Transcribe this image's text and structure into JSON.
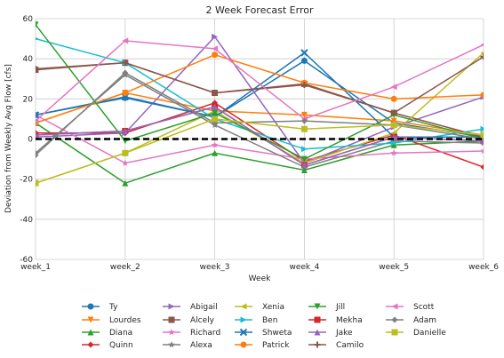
{
  "chart_data": {
    "type": "line",
    "title": "2 Week Forecast Error",
    "xlabel": "Week",
    "ylabel": "Deviation from Weekly Avg Flow [cfs]",
    "categories": [
      "week_1",
      "week_2",
      "week_3",
      "week_4",
      "week_5",
      "week_6"
    ],
    "ylim": [
      -60,
      60
    ],
    "yticks": [
      -60,
      -40,
      -20,
      0,
      20,
      40,
      60
    ],
    "grid": true,
    "legend_position": "bottom",
    "reference_line": {
      "y": 0,
      "style": "dashed",
      "color": "#000000"
    },
    "series": [
      {
        "name": "Ty",
        "color": "#1f77b4",
        "marker": "circle",
        "values": [
          12,
          20.5,
          11,
          39,
          8,
          1
        ]
      },
      {
        "name": "Lourdes",
        "color": "#ff7f0e",
        "marker": "triangle-down",
        "values": [
          8,
          23,
          14,
          12,
          9,
          2
        ]
      },
      {
        "name": "Diana",
        "color": "#2ca02c",
        "marker": "triangle-up",
        "values": [
          8,
          -22,
          -7,
          -15.5,
          -3,
          -1
        ]
      },
      {
        "name": "Quinn",
        "color": "#d62728",
        "marker": "diamond",
        "values": [
          3,
          3,
          18,
          -11,
          2,
          -14
        ]
      },
      {
        "name": "Abigail",
        "color": "#9467bd",
        "marker": "triangle-right",
        "values": [
          1,
          3,
          51,
          -12,
          6,
          21
        ]
      },
      {
        "name": "Alcely",
        "color": "#8c564b",
        "marker": "square",
        "values": [
          34.5,
          38,
          23,
          27.5,
          13,
          1
        ]
      },
      {
        "name": "Richard",
        "color": "#e377c2",
        "marker": "star",
        "values": [
          12,
          -12,
          -3,
          -10,
          -7,
          -6
        ]
      },
      {
        "name": "Alexa",
        "color": "#7f7f7f",
        "marker": "star",
        "values": [
          -7,
          32,
          7,
          -14,
          -1,
          -2
        ]
      },
      {
        "name": "Xenia",
        "color": "#bcbd22",
        "marker": "triangle-left",
        "values": [
          -22,
          -7,
          14,
          -12,
          3,
          43
        ]
      },
      {
        "name": "Ben",
        "color": "#17becf",
        "marker": "triangle-right",
        "values": [
          50,
          38,
          10,
          -5,
          -2,
          5
        ]
      },
      {
        "name": "Shweta",
        "color": "#1f77b4",
        "marker": "x",
        "values": [
          12,
          21,
          11,
          43,
          1,
          1
        ]
      },
      {
        "name": "Patrick",
        "color": "#ff7f0e",
        "marker": "circle",
        "values": [
          8,
          23,
          42,
          28,
          20,
          22
        ]
      },
      {
        "name": "Jill",
        "color": "#2ca02c",
        "marker": "triangle-down",
        "values": [
          57,
          -1,
          13,
          -10,
          12,
          0
        ]
      },
      {
        "name": "Mekha",
        "color": "#d62728",
        "marker": "square",
        "values": [
          2,
          4,
          16,
          -13,
          1,
          -1
        ]
      },
      {
        "name": "Jake",
        "color": "#9467bd",
        "marker": "triangle-up",
        "values": [
          2,
          4,
          16,
          -13,
          1,
          -1
        ]
      },
      {
        "name": "Camilo",
        "color": "#8c564b",
        "marker": "plus",
        "values": [
          35,
          38,
          23,
          27,
          13,
          41
        ]
      },
      {
        "name": "Scott",
        "color": "#e377c2",
        "marker": "triangle-left",
        "values": [
          9,
          49,
          45,
          10,
          26,
          47
        ]
      },
      {
        "name": "Adam",
        "color": "#7f7f7f",
        "marker": "diamond",
        "values": [
          -8,
          33,
          8,
          9,
          7,
          0
        ]
      },
      {
        "name": "Danielle",
        "color": "#bcbd22",
        "marker": "square",
        "values": [
          -22,
          -7,
          10,
          5,
          7,
          2
        ]
      }
    ]
  }
}
